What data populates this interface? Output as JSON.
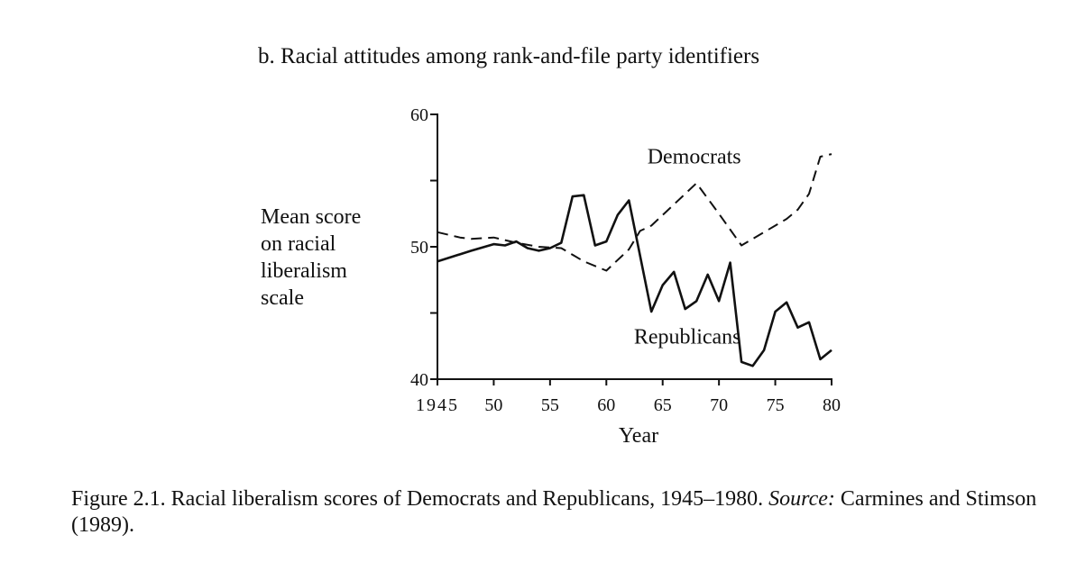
{
  "chart_data": {
    "type": "line",
    "subtitle": "b. Racial attitudes among rank-and-file party identifiers",
    "ylabel_lines": [
      "Mean score",
      "on racial",
      "liberalism",
      "scale"
    ],
    "xlabel": "Year",
    "xlim": [
      1945,
      1980
    ],
    "ylim": [
      40,
      60
    ],
    "x_ticks": [
      1945,
      1950,
      1955,
      1960,
      1965,
      1970,
      1975,
      1980
    ],
    "x_tick_labels": [
      "1945",
      "50",
      "55",
      "60",
      "65",
      "70",
      "75",
      "80"
    ],
    "y_ticks": [
      40,
      45,
      50,
      55,
      60
    ],
    "y_tick_labels": [
      "40",
      "",
      "50",
      "",
      "60"
    ],
    "series": [
      {
        "name": "Democrats",
        "style": "dashed",
        "x": [
          1945,
          1947,
          1948,
          1950,
          1952,
          1954,
          1956,
          1958,
          1960,
          1962,
          1963,
          1964,
          1966,
          1968,
          1970,
          1972,
          1974,
          1976,
          1977,
          1978,
          1979,
          1980
        ],
        "y": [
          51.1,
          50.7,
          50.6,
          50.7,
          50.3,
          50.0,
          49.9,
          48.9,
          48.2,
          49.8,
          51.2,
          51.6,
          53.2,
          54.8,
          52.5,
          50.1,
          51.1,
          52.1,
          52.8,
          54.0,
          56.8,
          57.0
        ]
      },
      {
        "name": "Republicans",
        "style": "solid",
        "x": [
          1945,
          1948,
          1950,
          1951,
          1952,
          1953,
          1954,
          1955,
          1956,
          1957,
          1958,
          1959,
          1960,
          1961,
          1962,
          1964,
          1965,
          1966,
          1967,
          1968,
          1969,
          1970,
          1971,
          1972,
          1973,
          1974,
          1975,
          1976,
          1977,
          1978,
          1979,
          1980
        ],
        "y": [
          48.9,
          49.7,
          50.2,
          50.1,
          50.4,
          49.9,
          49.7,
          49.9,
          50.3,
          53.8,
          53.9,
          50.1,
          50.4,
          52.4,
          53.5,
          45.1,
          47.1,
          48.1,
          45.3,
          45.9,
          47.9,
          45.9,
          48.8,
          41.3,
          41.0,
          42.2,
          45.1,
          45.8,
          43.9,
          44.3,
          41.5,
          42.2
        ]
      }
    ],
    "annotations": [
      {
        "text": "Democrats",
        "x": 1967.8,
        "y": 56.3
      },
      {
        "text": "Republicans",
        "x": 1967.2,
        "y": 42.7
      }
    ]
  },
  "caption": {
    "text": "Figure 2.1. Racial liberalism scores of Democrats and Republicans, 1945–1980. ",
    "source_label": "Source:",
    "source_text": " Carmines and Stimson (1989)."
  }
}
